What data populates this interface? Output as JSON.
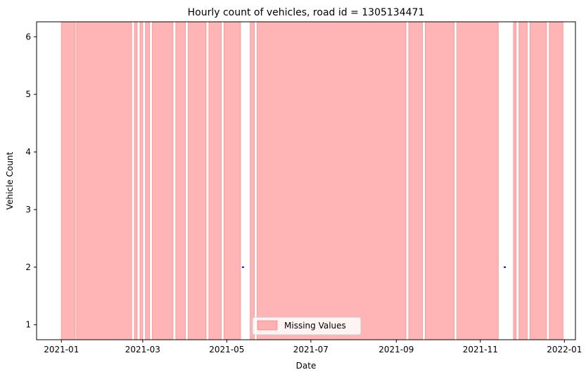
{
  "chart_data": {
    "type": "line",
    "title": "Hourly count of vehicles, road id = 1305134471",
    "xlabel": "Date",
    "ylabel": "Vehicle Count",
    "xlim": [
      "2020-12-14",
      "2022-01-09"
    ],
    "ylim": [
      0.74,
      6.26
    ],
    "x_ticks": [
      "2021-01",
      "2021-03",
      "2021-05",
      "2021-07",
      "2021-09",
      "2021-11",
      "2022-01"
    ],
    "y_ticks": [
      "1",
      "2",
      "3",
      "4",
      "5",
      "6"
    ],
    "grid": false,
    "series": [
      {
        "kind": "line",
        "color": "#0000ff",
        "points": [
          {
            "x": "2021-05-12",
            "y": 2
          },
          {
            "x": "2021-05-13",
            "y": 2
          },
          {
            "x": "2021-11-18",
            "y": 2
          },
          {
            "x": "2021-11-19",
            "y": 2
          }
        ]
      },
      {
        "name": "Missing Values",
        "kind": "span",
        "color": "#ff6b6b",
        "ranges": [
          [
            "2021-01-01",
            "2021-01-11"
          ],
          [
            "2021-01-12",
            "2021-02-21"
          ],
          [
            "2021-02-23",
            "2021-02-25"
          ],
          [
            "2021-02-27",
            "2021-03-01"
          ],
          [
            "2021-03-03",
            "2021-03-06"
          ],
          [
            "2021-03-08",
            "2021-03-23"
          ],
          [
            "2021-03-25",
            "2021-04-01"
          ],
          [
            "2021-04-03",
            "2021-04-16"
          ],
          [
            "2021-04-18",
            "2021-04-27"
          ],
          [
            "2021-04-29",
            "2021-05-11"
          ],
          [
            "2021-05-18",
            "2021-05-21"
          ],
          [
            "2021-05-23",
            "2021-09-08"
          ],
          [
            "2021-09-10",
            "2021-09-20"
          ],
          [
            "2021-09-22",
            "2021-10-13"
          ],
          [
            "2021-10-15",
            "2021-11-14"
          ],
          [
            "2021-11-25",
            "2021-11-27"
          ],
          [
            "2021-11-29",
            "2021-12-05"
          ],
          [
            "2021-12-07",
            "2021-12-19"
          ],
          [
            "2021-12-21",
            "2021-12-31"
          ]
        ]
      }
    ],
    "legend": {
      "position": "lower center",
      "entries": [
        "Missing Values"
      ]
    }
  }
}
